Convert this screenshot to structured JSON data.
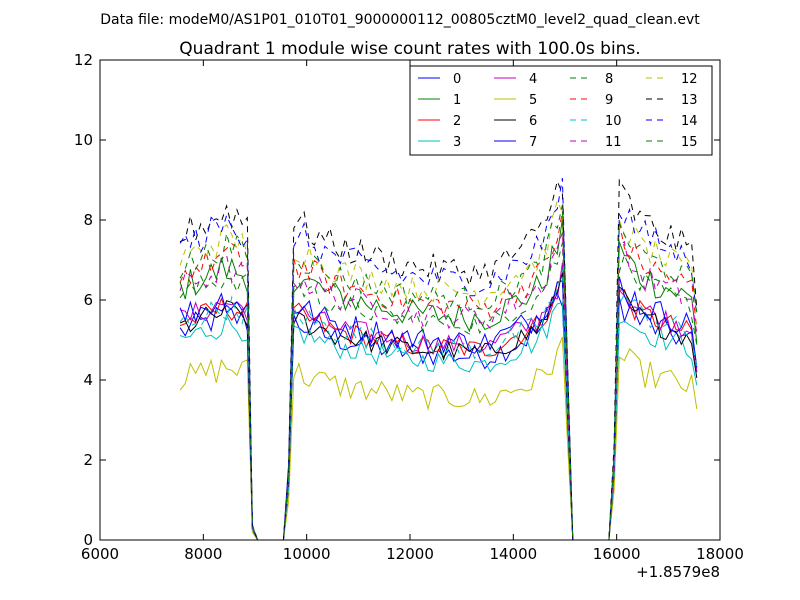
{
  "header": {
    "data_file": "Data file: modeM0/AS1P01_010T01_9000000112_00805cztM0_level2_quad_clean.evt"
  },
  "chart_data": {
    "type": "line",
    "title": "Quadrant 1 module wise count rates with 100.0s bins.",
    "xlabel": "",
    "ylabel": "",
    "x_offset_label": "+1.8579e8",
    "xlim": [
      6000,
      18000
    ],
    "ylim": [
      0,
      12
    ],
    "x_ticks": [
      6000,
      8000,
      10000,
      12000,
      14000,
      16000,
      18000
    ],
    "x_tick_labels": [
      "6000",
      "8000",
      "10000",
      "12000",
      "14000",
      "16000",
      "18000"
    ],
    "y_ticks": [
      0,
      2,
      4,
      6,
      8,
      10,
      12
    ],
    "y_tick_labels": [
      "0",
      "2",
      "4",
      "6",
      "8",
      "10",
      "12"
    ],
    "grid": false,
    "legend_position": "top-right",
    "legend_columns": 4,
    "x_start": 7550,
    "x_step": 100,
    "n_points": 101,
    "series": [
      {
        "name": "0",
        "color": "#0000ff",
        "dashed": false,
        "base": 5.2,
        "spread": 0.35
      },
      {
        "name": "1",
        "color": "#008000",
        "dashed": false,
        "base": 6.3,
        "spread": 0.4
      },
      {
        "name": "2",
        "color": "#ff0000",
        "dashed": false,
        "base": 5.4,
        "spread": 0.3
      },
      {
        "name": "3",
        "color": "#00bfbf",
        "dashed": false,
        "base": 5.0,
        "spread": 0.3
      },
      {
        "name": "4",
        "color": "#bf00bf",
        "dashed": false,
        "base": 5.5,
        "spread": 0.3
      },
      {
        "name": "5",
        "color": "#bfbf00",
        "dashed": false,
        "base": 4.0,
        "spread": 0.35
      },
      {
        "name": "6",
        "color": "#000000",
        "dashed": false,
        "base": 5.3,
        "spread": 0.3
      },
      {
        "name": "7",
        "color": "#0000ff",
        "dashed": false,
        "base": 5.6,
        "spread": 0.35
      },
      {
        "name": "8",
        "color": "#008000",
        "dashed": true,
        "base": 6.1,
        "spread": 0.3
      },
      {
        "name": "9",
        "color": "#ff0000",
        "dashed": true,
        "base": 6.6,
        "spread": 0.35
      },
      {
        "name": "10",
        "color": "#00bfbf",
        "dashed": true,
        "base": 5.4,
        "spread": 0.3
      },
      {
        "name": "11",
        "color": "#bf00bf",
        "dashed": true,
        "base": 6.3,
        "spread": 0.35
      },
      {
        "name": "12",
        "color": "#bfbf00",
        "dashed": true,
        "base": 7.0,
        "spread": 0.35
      },
      {
        "name": "13",
        "color": "#000000",
        "dashed": true,
        "base": 7.6,
        "spread": 0.4
      },
      {
        "name": "14",
        "color": "#0000ff",
        "dashed": true,
        "base": 7.3,
        "spread": 0.4
      },
      {
        "name": "15",
        "color": "#008000",
        "dashed": true,
        "base": 6.8,
        "spread": 0.35
      }
    ],
    "profile": [
      {
        "x": 7550,
        "v": 1.0
      },
      {
        "x": 8450,
        "v": 1.08
      },
      {
        "x": 8850,
        "v": 1.05
      },
      {
        "x": 8950,
        "v": 0.05
      },
      {
        "x": 9050,
        "v": 0
      },
      {
        "x": 9550,
        "v": 0
      },
      {
        "x": 9650,
        "v": 0.25
      },
      {
        "x": 9750,
        "v": 1.05
      },
      {
        "x": 10500,
        "v": 0.97
      },
      {
        "x": 12000,
        "v": 0.9
      },
      {
        "x": 13500,
        "v": 0.88
      },
      {
        "x": 14500,
        "v": 1.0
      },
      {
        "x": 14950,
        "v": 1.2
      },
      {
        "x": 15150,
        "v": 0
      },
      {
        "x": 15850,
        "v": 0
      },
      {
        "x": 15950,
        "v": 0.3
      },
      {
        "x": 16050,
        "v": 1.15
      },
      {
        "x": 16450,
        "v": 1.05
      },
      {
        "x": 17500,
        "v": 0.95
      },
      {
        "x": 17550,
        "v": 0.8
      },
      {
        "x": 17650,
        "v": 0.2
      }
    ]
  }
}
